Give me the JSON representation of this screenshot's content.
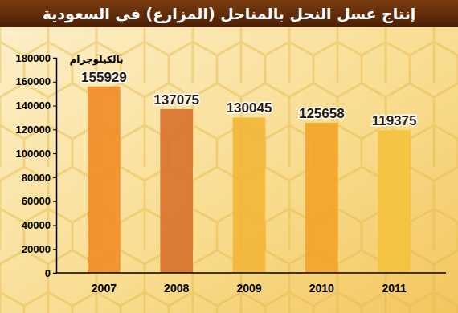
{
  "chart_data": {
    "type": "bar",
    "title": "إنتاج عسل النحل بالمناحل (المزارع) في السعودية",
    "y_label": "بالكيلوجرام",
    "categories": [
      "2007",
      "2008",
      "2009",
      "2010",
      "2011"
    ],
    "values": [
      155929,
      137075,
      130045,
      125658,
      119375
    ],
    "colors": [
      "#f28c28",
      "#d9732c",
      "#f2b63a",
      "#f2a52a",
      "#f4c23e"
    ],
    "ylim": [
      0,
      180000
    ],
    "yticks": [
      0,
      20000,
      40000,
      60000,
      80000,
      100000,
      120000,
      140000,
      160000,
      180000
    ],
    "grid": false,
    "data_labels": true
  }
}
